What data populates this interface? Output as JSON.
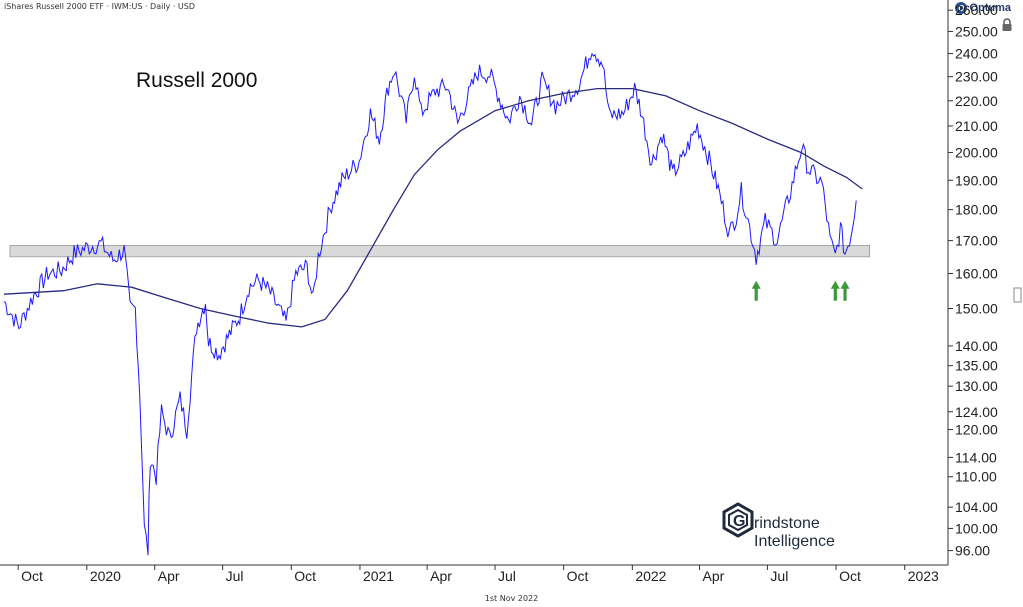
{
  "header": {
    "instrument": "iShares Russell 2000 ETF · IWM:US · Daily · USD"
  },
  "logo": {
    "name": "Optuma",
    "badge": "O"
  },
  "footer": {
    "date": "1st Nov 2022"
  },
  "brand": {
    "line1": "rindstone",
    "line2": "Intelligence",
    "mark": "G"
  },
  "colors": {
    "price": "#1a1aff",
    "ma": "#2a2a80",
    "zone": "#d9d9d9",
    "arrow": "#3a9a3a"
  },
  "chart_data": {
    "type": "line",
    "title": "Russell 2000",
    "y_scale": "log",
    "ylim": [
      94,
      262
    ],
    "xlim": [
      "2019-09-12",
      "2023-02-28"
    ],
    "y_ticks": [
      "96.00",
      "100.00",
      "104.00",
      "110.00",
      "114.00",
      "120.00",
      "124.00",
      "130.00",
      "135.00",
      "140.00",
      "150.00",
      "160.00",
      "170.00",
      "180.00",
      "190.00",
      "200.00",
      "210.00",
      "220.00",
      "230.00",
      "240.00",
      "250.00",
      "260.00"
    ],
    "x_ticks": [
      {
        "label": "Oct",
        "date": "2019-10-01"
      },
      {
        "label": "2020",
        "date": "2020-01-01"
      },
      {
        "label": "Apr",
        "date": "2020-04-01"
      },
      {
        "label": "Jul",
        "date": "2020-07-01"
      },
      {
        "label": "Oct",
        "date": "2020-10-01"
      },
      {
        "label": "2021",
        "date": "2021-01-01"
      },
      {
        "label": "Apr",
        "date": "2021-04-01"
      },
      {
        "label": "Jul",
        "date": "2021-07-01"
      },
      {
        "label": "Oct",
        "date": "2021-10-01"
      },
      {
        "label": "2022",
        "date": "2022-01-01"
      },
      {
        "label": "Apr",
        "date": "2022-04-01"
      },
      {
        "label": "Jul",
        "date": "2022-07-01"
      },
      {
        "label": "Oct",
        "date": "2022-10-01"
      },
      {
        "label": "2023",
        "date": "2023-01-01"
      }
    ],
    "support_zone": {
      "low": 165,
      "high": 168.5,
      "start": "2019-09-20",
      "end": "2022-11-15"
    },
    "arrows": [
      {
        "date": "2022-06-16",
        "value": 162
      },
      {
        "date": "2022-09-30",
        "value": 162
      },
      {
        "date": "2022-10-13",
        "value": 162
      }
    ],
    "series": [
      {
        "key": "price",
        "points": [
          [
            "2019-09-12",
            152
          ],
          [
            "2019-10-02",
            145
          ],
          [
            "2019-10-20",
            153
          ],
          [
            "2019-11-10",
            160
          ],
          [
            "2019-11-28",
            161
          ],
          [
            "2019-12-15",
            166
          ],
          [
            "2020-01-02",
            168
          ],
          [
            "2020-01-20",
            169
          ],
          [
            "2020-02-05",
            164
          ],
          [
            "2020-02-20",
            167
          ],
          [
            "2020-02-28",
            150
          ],
          [
            "2020-03-06",
            150
          ],
          [
            "2020-03-12",
            128
          ],
          [
            "2020-03-18",
            100
          ],
          [
            "2020-03-23",
            96
          ],
          [
            "2020-03-26",
            114
          ],
          [
            "2020-04-03",
            110
          ],
          [
            "2020-04-10",
            124
          ],
          [
            "2020-04-21",
            118
          ],
          [
            "2020-05-05",
            127
          ],
          [
            "2020-05-14",
            120
          ],
          [
            "2020-05-27",
            145
          ],
          [
            "2020-06-08",
            152
          ],
          [
            "2020-06-12",
            141
          ],
          [
            "2020-06-26",
            138
          ],
          [
            "2020-07-10",
            143
          ],
          [
            "2020-07-24",
            148
          ],
          [
            "2020-08-05",
            156
          ],
          [
            "2020-08-18",
            158
          ],
          [
            "2020-09-01",
            155
          ],
          [
            "2020-09-24",
            146
          ],
          [
            "2020-10-07",
            160
          ],
          [
            "2020-10-22",
            162
          ],
          [
            "2020-10-30",
            152
          ],
          [
            "2020-11-06",
            165
          ],
          [
            "2020-11-24",
            182
          ],
          [
            "2020-12-08",
            190
          ],
          [
            "2020-12-31",
            197
          ],
          [
            "2021-01-15",
            215
          ],
          [
            "2021-01-27",
            205
          ],
          [
            "2021-02-08",
            226
          ],
          [
            "2021-02-16",
            233
          ],
          [
            "2021-03-04",
            212
          ],
          [
            "2021-03-15",
            232
          ],
          [
            "2021-03-24",
            215
          ],
          [
            "2021-04-12",
            224
          ],
          [
            "2021-04-28",
            226
          ],
          [
            "2021-05-12",
            211
          ],
          [
            "2021-06-08",
            232
          ],
          [
            "2021-06-24",
            231
          ],
          [
            "2021-07-19",
            212
          ],
          [
            "2021-08-03",
            222
          ],
          [
            "2021-08-19",
            211
          ],
          [
            "2021-09-02",
            228
          ],
          [
            "2021-09-20",
            218
          ],
          [
            "2021-10-06",
            222
          ],
          [
            "2021-10-22",
            227
          ],
          [
            "2021-11-08",
            243
          ],
          [
            "2021-11-22",
            236
          ],
          [
            "2021-12-01",
            214
          ],
          [
            "2021-12-20",
            215
          ],
          [
            "2022-01-04",
            225
          ],
          [
            "2022-01-12",
            217
          ],
          [
            "2022-01-27",
            196
          ],
          [
            "2022-02-10",
            207
          ],
          [
            "2022-02-24",
            192
          ],
          [
            "2022-03-10",
            198
          ],
          [
            "2022-03-29",
            210
          ],
          [
            "2022-04-12",
            199
          ],
          [
            "2022-04-26",
            187
          ],
          [
            "2022-05-11",
            172
          ],
          [
            "2022-05-20",
            178
          ],
          [
            "2022-05-27",
            186
          ],
          [
            "2022-06-16",
            165
          ],
          [
            "2022-06-28",
            176
          ],
          [
            "2022-07-14",
            170
          ],
          [
            "2022-08-01",
            186
          ],
          [
            "2022-08-16",
            202
          ],
          [
            "2022-08-25",
            194
          ],
          [
            "2022-09-12",
            189
          ],
          [
            "2022-09-23",
            170
          ],
          [
            "2022-09-30",
            165
          ],
          [
            "2022-10-07",
            174
          ],
          [
            "2022-10-13",
            166
          ],
          [
            "2022-10-21",
            172
          ],
          [
            "2022-10-28",
            183
          ]
        ]
      },
      {
        "key": "ma",
        "points": [
          [
            "2019-09-12",
            154
          ],
          [
            "2019-12-01",
            155
          ],
          [
            "2020-01-15",
            157
          ],
          [
            "2020-03-01",
            156
          ],
          [
            "2020-04-15",
            153
          ],
          [
            "2020-06-01",
            150
          ],
          [
            "2020-07-15",
            148
          ],
          [
            "2020-09-01",
            146
          ],
          [
            "2020-10-15",
            145
          ],
          [
            "2020-11-15",
            147
          ],
          [
            "2020-12-15",
            155
          ],
          [
            "2021-01-15",
            167
          ],
          [
            "2021-02-15",
            180
          ],
          [
            "2021-03-15",
            192
          ],
          [
            "2021-04-15",
            201
          ],
          [
            "2021-05-15",
            208
          ],
          [
            "2021-07-01",
            216
          ],
          [
            "2021-08-15",
            220
          ],
          [
            "2021-10-01",
            223
          ],
          [
            "2021-11-15",
            225
          ],
          [
            "2022-01-01",
            225
          ],
          [
            "2022-02-15",
            222
          ],
          [
            "2022-04-01",
            216
          ],
          [
            "2022-05-15",
            211
          ],
          [
            "2022-07-01",
            205
          ],
          [
            "2022-08-15",
            200
          ],
          [
            "2022-09-15",
            195
          ],
          [
            "2022-10-15",
            191
          ],
          [
            "2022-11-05",
            187
          ]
        ]
      }
    ]
  }
}
